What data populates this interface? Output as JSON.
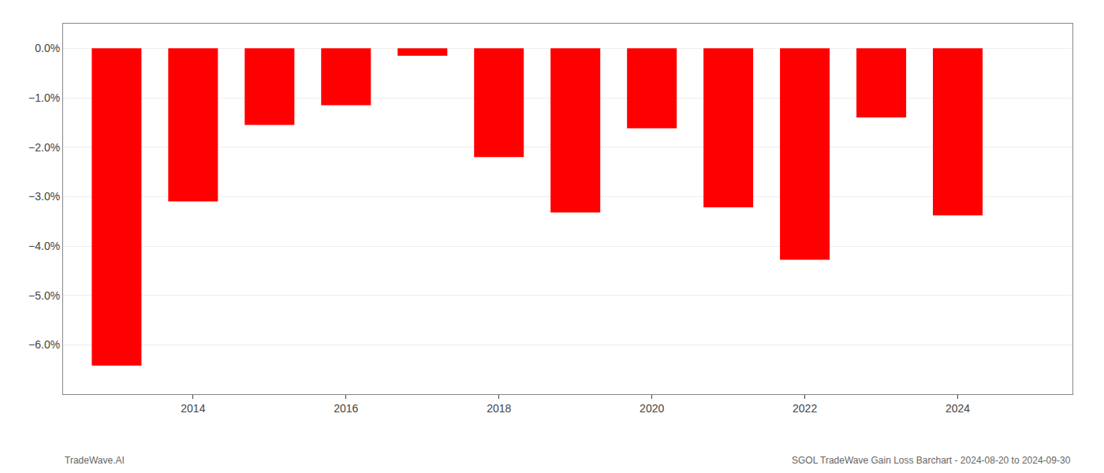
{
  "chart_data": {
    "type": "bar",
    "x": [
      2013,
      2014,
      2015,
      2016,
      2017,
      2018,
      2019,
      2020,
      2021,
      2022,
      2023,
      2024
    ],
    "values": [
      -6.42,
      -3.1,
      -1.55,
      -1.15,
      -0.15,
      -2.2,
      -3.32,
      -1.62,
      -3.22,
      -4.28,
      -1.4,
      -3.38
    ],
    "color": "#ff0000",
    "xlim": [
      2012.3,
      2025.5
    ],
    "xticks": [
      2014,
      2016,
      2018,
      2020,
      2022,
      2024
    ],
    "ylim": [
      -7.0,
      0.5
    ],
    "yticks": [
      {
        "value": 0.0,
        "label": "0.0%"
      },
      {
        "value": -1.0,
        "label": "−1.0%"
      },
      {
        "value": -2.0,
        "label": "−2.0%"
      },
      {
        "value": -3.0,
        "label": "−3.0%"
      },
      {
        "value": -4.0,
        "label": "−4.0%"
      },
      {
        "value": -5.0,
        "label": "−5.0%"
      },
      {
        "value": -6.0,
        "label": "−6.0%"
      }
    ],
    "grid": true,
    "annotations": [
      "TradeWave.AI",
      "SGOL TradeWave Gain Loss Barchart - 2024-08-20 to 2024-09-30"
    ]
  }
}
